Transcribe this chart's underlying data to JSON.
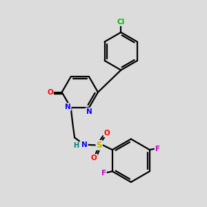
{
  "background_color": "#dcdcdc",
  "bond_color": "#000000",
  "atom_colors": {
    "N": "#0000ff",
    "O": "#ff0000",
    "S": "#b8b800",
    "Cl": "#00bb00",
    "F": "#cc00cc",
    "H": "#008080",
    "C": "#000000"
  }
}
